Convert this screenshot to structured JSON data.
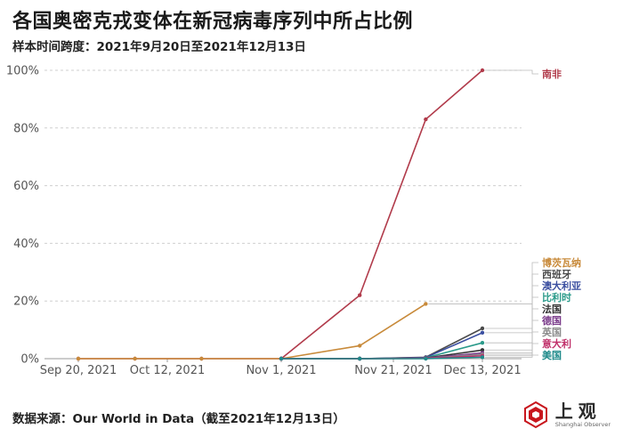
{
  "header": {
    "title": "各国奥密克戎变体在新冠病毒序列中所占比例",
    "subtitle": "样本时间跨度：2021年9月20日至2021年12月13日"
  },
  "footer": {
    "source": "数据来源：Our World in Data（截至2021年12月13日）"
  },
  "brand": {
    "name": "上观",
    "sub": "Shanghai Observer",
    "color": "#c8161d"
  },
  "chart_data": {
    "type": "line",
    "title": "各国奥密克戎变体在新冠病毒序列中所占比例",
    "subtitle": "样本时间跨度：2021年9月20日至2021年12月13日",
    "x_ticks": [
      "Sep 20, 2021",
      "Oct 12, 2021",
      "Nov 1, 2021",
      "Nov 21, 2021",
      "Dec 13, 2021"
    ],
    "y_ticks": [
      "0%",
      "20%",
      "40%",
      "60%",
      "80%",
      "100%"
    ],
    "ylim": [
      0,
      100
    ],
    "grid": true,
    "series": [
      {
        "name": "南非",
        "color": "#b13b4b",
        "x": [
          "2021-09-20",
          "2021-10-04",
          "2021-10-18",
          "2021-11-01",
          "2021-11-15",
          "2021-11-29",
          "2021-12-13"
        ],
        "values": [
          0,
          0,
          0,
          0,
          22,
          83,
          100
        ]
      },
      {
        "name": "博茨瓦纳",
        "color": "#c88a3a",
        "x": [
          "2021-09-20",
          "2021-10-04",
          "2021-10-18",
          "2021-11-01",
          "2021-11-15",
          "2021-11-29"
        ],
        "values": [
          0,
          0,
          0,
          0,
          4.5,
          19
        ]
      },
      {
        "name": "西班牙",
        "color": "#4a4a4a",
        "x": [
          "2021-11-01",
          "2021-11-15",
          "2021-11-29",
          "2021-12-13"
        ],
        "values": [
          0,
          0,
          0.5,
          10.5
        ]
      },
      {
        "name": "澳大利亚",
        "color": "#3b4fa0",
        "x": [
          "2021-11-01",
          "2021-11-15",
          "2021-11-29",
          "2021-12-13"
        ],
        "values": [
          0,
          0,
          0.4,
          9
        ]
      },
      {
        "name": "比利时",
        "color": "#2a9a8a",
        "x": [
          "2021-11-01",
          "2021-11-15",
          "2021-11-29",
          "2021-12-13"
        ],
        "values": [
          0,
          0,
          0.3,
          5.5
        ]
      },
      {
        "name": "法国",
        "color": "#333333",
        "x": [
          "2021-11-01",
          "2021-11-15",
          "2021-11-29",
          "2021-12-13"
        ],
        "values": [
          0,
          0,
          0.2,
          3
        ]
      },
      {
        "name": "德国",
        "color": "#7a3a8a",
        "x": [
          "2021-11-01",
          "2021-11-15",
          "2021-11-29",
          "2021-12-13"
        ],
        "values": [
          0,
          0,
          0.2,
          2
        ]
      },
      {
        "name": "英国",
        "color": "#8c8c8c",
        "x": [
          "2021-11-01",
          "2021-11-15",
          "2021-11-29",
          "2021-12-13"
        ],
        "values": [
          0,
          0,
          0.1,
          1.5
        ]
      },
      {
        "name": "意大利",
        "color": "#c0306a",
        "x": [
          "2021-11-01",
          "2021-11-15",
          "2021-11-29",
          "2021-12-13"
        ],
        "values": [
          0,
          0,
          0.1,
          1
        ]
      },
      {
        "name": "美国",
        "color": "#1f8a8a",
        "x": [
          "2021-11-01",
          "2021-11-15",
          "2021-11-29",
          "2021-12-13"
        ],
        "values": [
          0,
          0,
          0,
          0.5
        ]
      }
    ]
  }
}
